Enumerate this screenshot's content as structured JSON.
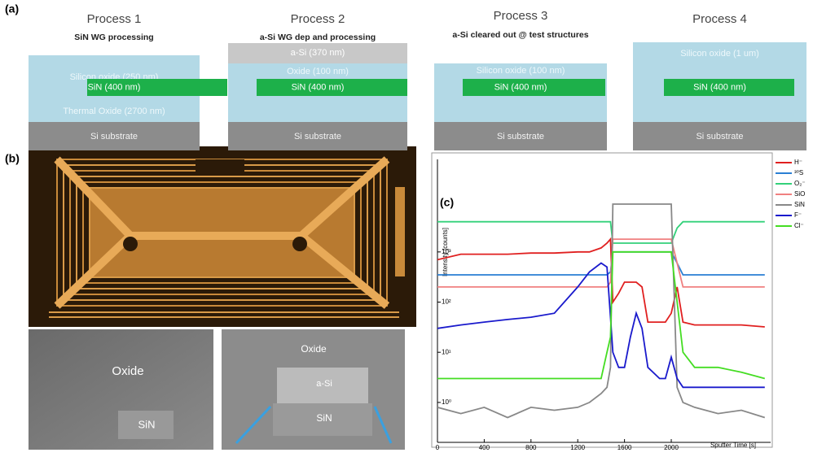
{
  "panel_a": {
    "label": "(a)",
    "processes": [
      {
        "title": "Process 1",
        "subtitle": "SiN WG processing",
        "layers": [
          "Silicon oxide (250 nm)",
          "SiN (400 nm)",
          "Thermal Oxide (2700 nm)",
          "Si substrate"
        ]
      },
      {
        "title": "Process 2",
        "subtitle": "a-Si WG dep and processing",
        "layers": [
          "a-Si (370 nm)",
          "Oxide (100 nm)",
          "SiN (400 nm)",
          "Si substrate"
        ]
      },
      {
        "title": "Process 3",
        "subtitle": "a-Si cleared out @ test structures",
        "layers": [
          "Silicon oxide (100 nm)",
          "SiN (400 nm)",
          "Si substrate"
        ]
      },
      {
        "title": "Process 4",
        "layers": [
          "Silicon oxide (1 um)",
          "SiN (400 nm)",
          "Si substrate"
        ]
      }
    ]
  },
  "panel_b": {
    "label": "(b)",
    "sem_left": [
      "Oxide",
      "SiN"
    ],
    "sem_right": [
      "Oxide",
      "a-Si",
      "SiN"
    ]
  },
  "chart_data": {
    "type": "line",
    "panel_label": "(c)",
    "y_label": "Intensity [counts]",
    "x_label": "Sputter Time [s]",
    "log_y": true,
    "x": [
      0,
      200,
      400,
      600,
      800,
      1000,
      1200,
      1300,
      1400,
      1450,
      1480,
      1500,
      1550,
      1600,
      1650,
      1700,
      1750,
      1800,
      1900,
      1950,
      2000,
      2050,
      2100,
      2200,
      2400,
      2600,
      2800
    ],
    "xlim": [
      0,
      2850
    ],
    "xticks": [
      0,
      400,
      800,
      1200,
      1600,
      2000
    ],
    "ylim": [
      0.16,
      70000
    ],
    "yticks": [
      {
        "value": 1,
        "label": "10⁰"
      },
      {
        "value": 10,
        "label": "10¹"
      },
      {
        "value": 100,
        "label": "10²"
      },
      {
        "value": 1000,
        "label": "10³"
      }
    ],
    "series": [
      {
        "name": "H⁻",
        "color": "#e02020",
        "values": [
          700,
          900,
          900,
          900,
          950,
          950,
          1000,
          1000,
          1200,
          1500,
          1800,
          100,
          150,
          250,
          250,
          250,
          200,
          40,
          40,
          40,
          60,
          200,
          40,
          35,
          35,
          35,
          32
        ]
      },
      {
        "name": "³⁰S",
        "color": "#2a7fd4",
        "values": [
          350,
          350,
          350,
          350,
          350,
          350,
          350,
          350,
          350,
          350,
          400,
          1000,
          1000,
          1000,
          1000,
          1000,
          1000,
          1000,
          1000,
          1000,
          1000,
          600,
          350,
          350,
          350,
          350,
          350
        ]
      },
      {
        "name": "O₂⁻",
        "color": "#33d17a",
        "values": [
          4000,
          4000,
          4000,
          4000,
          4000,
          4000,
          4000,
          4000,
          4000,
          4000,
          4000,
          1500,
          1500,
          1500,
          1500,
          1500,
          1500,
          1500,
          1500,
          1500,
          1500,
          3000,
          4000,
          4000,
          4000,
          4000,
          4000
        ]
      },
      {
        "name": "SiO",
        "color": "#f08080",
        "values": [
          200,
          200,
          200,
          200,
          200,
          200,
          200,
          200,
          200,
          200,
          250,
          1800,
          1800,
          1800,
          1800,
          1800,
          1800,
          1800,
          1800,
          1800,
          1800,
          600,
          200,
          200,
          200,
          200,
          200
        ]
      },
      {
        "name": "SiN",
        "color": "#888888",
        "values": [
          0.8,
          0.6,
          0.8,
          0.5,
          0.8,
          0.7,
          0.8,
          1,
          1.5,
          2,
          5,
          9000,
          9000,
          9000,
          9000,
          9000,
          9000,
          9000,
          9000,
          9000,
          9000,
          2,
          1,
          0.8,
          0.6,
          0.7,
          0.5
        ]
      },
      {
        "name": "F⁻",
        "color": "#1a1acc",
        "values": [
          30,
          35,
          40,
          45,
          50,
          60,
          200,
          400,
          600,
          500,
          50,
          10,
          5,
          5,
          20,
          60,
          30,
          5,
          3,
          3,
          8,
          3,
          2,
          2,
          2,
          2,
          2
        ]
      },
      {
        "name": "Cl⁻",
        "color": "#44dd22",
        "values": [
          3,
          3,
          3,
          3,
          3,
          3,
          3,
          3,
          3,
          10,
          20,
          1000,
          1000,
          1000,
          1000,
          1000,
          1000,
          1000,
          1000,
          1000,
          1000,
          100,
          10,
          5,
          5,
          4,
          3
        ]
      }
    ]
  }
}
